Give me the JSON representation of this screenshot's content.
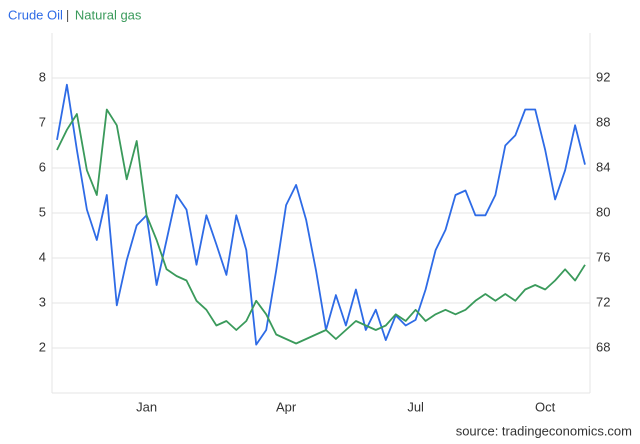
{
  "chart_data": {
    "type": "line",
    "source": "source: tradingeconomics.com",
    "categories": [
      null,
      null,
      null,
      null,
      null,
      null,
      null,
      null,
      null,
      "Jan",
      null,
      null,
      null,
      null,
      null,
      null,
      null,
      null,
      null,
      null,
      null,
      null,
      null,
      "Apr",
      null,
      null,
      null,
      null,
      null,
      null,
      null,
      null,
      null,
      null,
      null,
      null,
      "Jul",
      null,
      null,
      null,
      null,
      null,
      null,
      null,
      null,
      null,
      null,
      null,
      null,
      "Oct",
      null,
      null,
      null,
      null
    ],
    "series": [
      {
        "name": "Crude Oil",
        "color": "#2e6be6",
        "axis": "y2",
        "values": [
          86.5,
          91.4,
          85.6,
          80.3,
          77.6,
          81.6,
          71.8,
          75.8,
          78.9,
          79.8,
          73.6,
          77.6,
          81.6,
          80.3,
          75.4,
          79.8,
          77.2,
          74.5,
          79.8,
          76.7,
          68.3,
          69.6,
          74.9,
          80.7,
          82.5,
          79.4,
          74.9,
          69.6,
          72.7,
          70.0,
          73.2,
          69.6,
          71.4,
          68.7,
          70.9,
          70.0,
          70.5,
          73.2,
          76.7,
          78.5,
          81.6,
          82.0,
          79.8,
          79.8,
          81.6,
          86.0,
          86.9,
          89.2,
          89.2,
          85.6,
          81.2,
          83.8,
          87.8,
          84.3
        ]
      },
      {
        "name": "Natural gas",
        "color": "#3a9a5b",
        "values": [
          6.4,
          6.85,
          7.2,
          5.95,
          5.4,
          7.3,
          6.95,
          5.75,
          6.6,
          4.95,
          4.4,
          3.75,
          3.6,
          3.5,
          3.05,
          2.85,
          2.5,
          2.6,
          2.4,
          2.6,
          3.05,
          2.75,
          2.3,
          2.2,
          2.1,
          2.2,
          2.3,
          2.4,
          2.2,
          2.4,
          2.6,
          2.5,
          2.4,
          2.5,
          2.75,
          2.6,
          2.85,
          2.6,
          2.75,
          2.85,
          2.75,
          2.85,
          3.05,
          3.2,
          3.05,
          3.2,
          3.05,
          3.3,
          3.4,
          3.3,
          3.5,
          3.75,
          3.5,
          3.85
        ]
      }
    ],
    "ylim": [
      1,
      9
    ],
    "yticks": [
      2,
      3,
      4,
      5,
      6,
      7,
      8
    ],
    "y2lim": [
      64,
      96
    ],
    "y2ticks": [
      68,
      72,
      76,
      80,
      84,
      88,
      92
    ],
    "grid": true
  }
}
